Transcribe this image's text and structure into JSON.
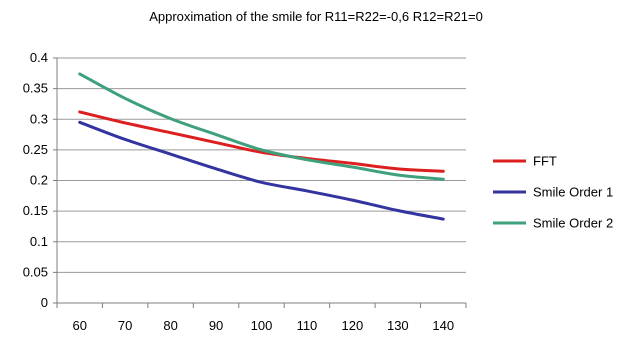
{
  "chart_data": {
    "type": "line",
    "title": "Approximation of the smile for R11=R22=-0,6 R12=R21=0",
    "xlabel": "",
    "ylabel": "",
    "x": [
      60,
      70,
      80,
      90,
      100,
      110,
      120,
      130,
      140
    ],
    "x_tick_labels": [
      "60",
      "70",
      "80",
      "90",
      "100",
      "110",
      "120",
      "130",
      "140"
    ],
    "y_tick_labels": [
      "0",
      "0.05",
      "0.1",
      "0.15",
      "0.2",
      "0.25",
      "0.3",
      "0.35",
      "0.4"
    ],
    "ylim": [
      0,
      0.4
    ],
    "grid": "horizontal",
    "legend_position": "right",
    "series": [
      {
        "name": "FFT",
        "color": "#dd1f1f",
        "values": [
          0.312,
          0.294,
          0.278,
          0.262,
          0.246,
          0.236,
          0.228,
          0.219,
          0.215
        ]
      },
      {
        "name": "Smile Order 1",
        "color": "#3334a0",
        "values": [
          0.295,
          0.267,
          0.243,
          0.219,
          0.197,
          0.183,
          0.168,
          0.151,
          0.137
        ]
      },
      {
        "name": "Smile Order 2",
        "color": "#3fa07c",
        "values": [
          0.374,
          0.334,
          0.301,
          0.275,
          0.25,
          0.234,
          0.222,
          0.209,
          0.202
        ]
      }
    ]
  }
}
